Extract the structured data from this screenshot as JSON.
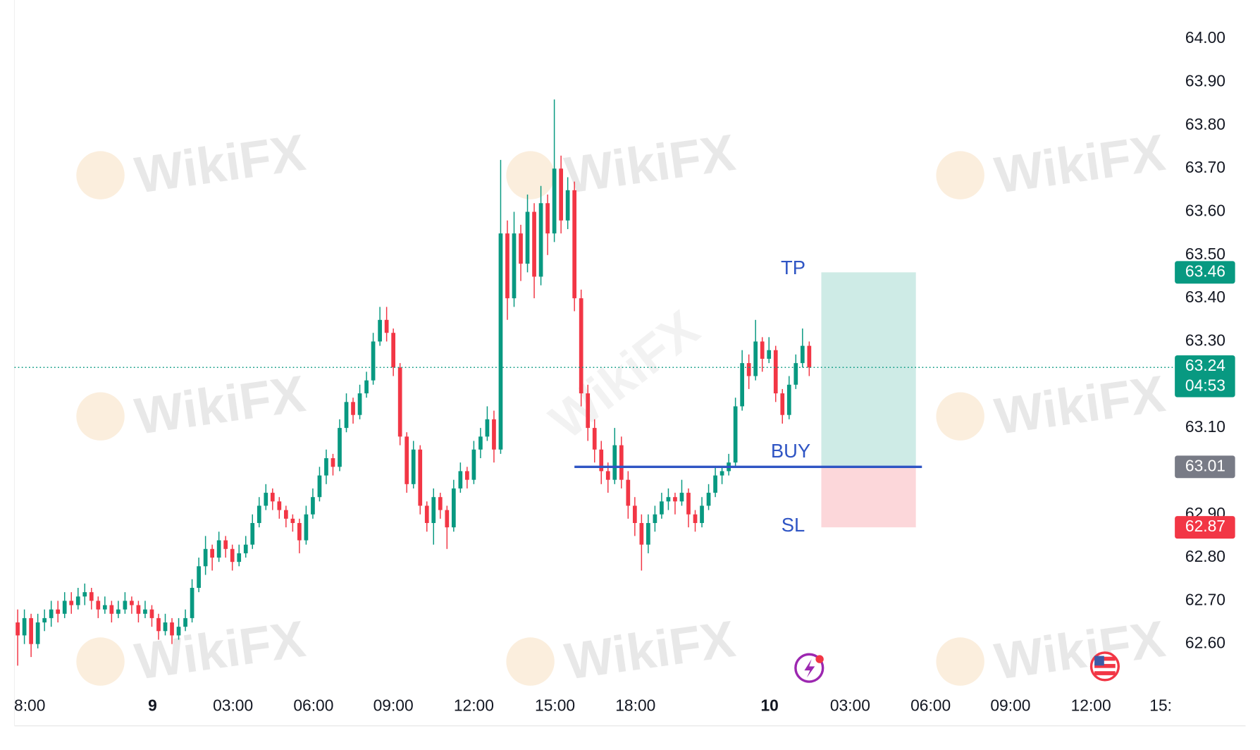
{
  "chart_data": {
    "type": "candlestick",
    "watermark": "WikiFX",
    "up_color": "#089981",
    "down_color": "#f23645",
    "xlim": [
      0,
      172.5
    ],
    "xticks": [
      {
        "value": 1.8,
        "label": "8:00"
      },
      {
        "value": 20.1,
        "label": "9"
      },
      {
        "value": 32.1,
        "label": "03:00"
      },
      {
        "value": 44.1,
        "label": "06:00"
      },
      {
        "value": 56.0,
        "label": "09:00"
      },
      {
        "value": 68.0,
        "label": "12:00"
      },
      {
        "value": 80.1,
        "label": "15:00"
      },
      {
        "value": 92.1,
        "label": "18:00"
      },
      {
        "value": 112.1,
        "label": "10"
      },
      {
        "value": 124.1,
        "label": "03:00"
      },
      {
        "value": 136.1,
        "label": "06:00"
      },
      {
        "value": 148.0,
        "label": "09:00"
      },
      {
        "value": 160.0,
        "label": "12:00"
      },
      {
        "value": 170.4,
        "label": "15:"
      }
    ],
    "ylim": [
      62.5,
      64.09
    ],
    "yticks": [
      {
        "value": 62.6,
        "label": "62.60"
      },
      {
        "value": 62.7,
        "label": "62.70"
      },
      {
        "value": 62.8,
        "label": "62.80"
      },
      {
        "value": 62.9,
        "label": "62.90"
      },
      {
        "value": 63.0,
        "label": "63.00"
      },
      {
        "value": 63.1,
        "label": "63.10"
      },
      {
        "value": 63.2,
        "label": "63.20"
      },
      {
        "value": 63.3,
        "label": "63.30"
      },
      {
        "value": 63.4,
        "label": "63.40"
      },
      {
        "value": 63.5,
        "label": "63.50"
      },
      {
        "value": 63.6,
        "label": "63.60"
      },
      {
        "value": 63.7,
        "label": "63.70"
      },
      {
        "value": 63.8,
        "label": "63.80"
      },
      {
        "value": 63.9,
        "label": "63.90"
      },
      {
        "value": 64.0,
        "label": "64.00"
      }
    ],
    "grid": true,
    "current_price": 63.24,
    "countdown": "04:53",
    "position": {
      "entry": 63.01,
      "take_profit": 63.46,
      "stop_loss": 62.87,
      "line_start": 83.0,
      "box_start": 119.8,
      "box_end": 133.9,
      "line_end": 134.8,
      "entry_label": "BUY",
      "tp_label": "TP",
      "sl_label": "SL",
      "line_color": "#2f55c4",
      "tp_color": "#089981",
      "sl_color": "#f23645",
      "entry_color": "#787b86"
    },
    "candles": [
      [
        62.65,
        62.68,
        62.55,
        62.62
      ],
      [
        62.62,
        62.68,
        62.6,
        62.66
      ],
      [
        62.66,
        62.67,
        62.57,
        62.6
      ],
      [
        62.6,
        62.67,
        62.59,
        62.65
      ],
      [
        62.65,
        62.68,
        62.63,
        62.66
      ],
      [
        62.66,
        62.7,
        62.64,
        62.68
      ],
      [
        62.68,
        62.7,
        62.65,
        62.67
      ],
      [
        62.67,
        62.72,
        62.66,
        62.7
      ],
      [
        62.7,
        62.72,
        62.67,
        62.69
      ],
      [
        62.69,
        62.73,
        62.68,
        62.71
      ],
      [
        62.71,
        62.74,
        62.69,
        62.72
      ],
      [
        62.72,
        62.73,
        62.68,
        62.7
      ],
      [
        62.7,
        62.71,
        62.66,
        62.68
      ],
      [
        62.68,
        62.71,
        62.67,
        62.69
      ],
      [
        62.69,
        62.7,
        62.65,
        62.67
      ],
      [
        62.67,
        62.7,
        62.66,
        62.68
      ],
      [
        62.68,
        62.72,
        62.67,
        62.7
      ],
      [
        62.7,
        62.71,
        62.67,
        62.69
      ],
      [
        62.69,
        62.7,
        62.65,
        62.67
      ],
      [
        62.67,
        62.7,
        62.66,
        62.68
      ],
      [
        62.68,
        62.69,
        62.64,
        62.66
      ],
      [
        62.66,
        62.67,
        62.61,
        62.63
      ],
      [
        62.63,
        62.67,
        62.62,
        62.65
      ],
      [
        62.65,
        62.66,
        62.6,
        62.62
      ],
      [
        62.62,
        62.66,
        62.61,
        62.64
      ],
      [
        62.64,
        62.68,
        62.63,
        62.66
      ],
      [
        62.66,
        62.75,
        62.65,
        62.73
      ],
      [
        62.73,
        62.8,
        62.72,
        62.78
      ],
      [
        62.78,
        62.85,
        62.76,
        62.82
      ],
      [
        62.82,
        62.83,
        62.77,
        62.8
      ],
      [
        62.8,
        62.86,
        62.79,
        62.84
      ],
      [
        62.84,
        62.85,
        62.8,
        62.82
      ],
      [
        62.82,
        62.83,
        62.77,
        62.79
      ],
      [
        62.79,
        62.83,
        62.78,
        62.81
      ],
      [
        62.81,
        62.85,
        62.8,
        62.83
      ],
      [
        62.83,
        62.9,
        62.82,
        62.88
      ],
      [
        62.88,
        62.94,
        62.87,
        62.92
      ],
      [
        62.92,
        62.97,
        62.91,
        62.95
      ],
      [
        62.95,
        62.96,
        62.91,
        62.93
      ],
      [
        62.93,
        62.94,
        62.89,
        62.91
      ],
      [
        62.91,
        62.92,
        62.87,
        62.89
      ],
      [
        62.89,
        62.9,
        62.86,
        62.88
      ],
      [
        62.88,
        62.89,
        62.81,
        62.84
      ],
      [
        62.84,
        62.92,
        62.83,
        62.9
      ],
      [
        62.9,
        62.96,
        62.89,
        62.94
      ],
      [
        62.94,
        63.01,
        62.93,
        62.99
      ],
      [
        62.99,
        63.05,
        62.97,
        63.03
      ],
      [
        63.03,
        63.04,
        62.99,
        63.01
      ],
      [
        63.01,
        63.12,
        63.0,
        63.1
      ],
      [
        63.1,
        63.18,
        63.09,
        63.16
      ],
      [
        63.16,
        63.17,
        63.11,
        63.13
      ],
      [
        63.13,
        63.2,
        63.12,
        63.18
      ],
      [
        63.18,
        63.23,
        63.17,
        63.21
      ],
      [
        63.21,
        63.32,
        63.2,
        63.3
      ],
      [
        63.3,
        63.38,
        63.29,
        63.35
      ],
      [
        63.35,
        63.38,
        63.3,
        63.32
      ],
      [
        63.32,
        63.33,
        63.22,
        63.24
      ],
      [
        63.24,
        63.25,
        63.06,
        63.08
      ],
      [
        63.08,
        63.09,
        62.95,
        62.97
      ],
      [
        62.97,
        63.07,
        62.96,
        63.05
      ],
      [
        63.05,
        63.06,
        62.9,
        62.92
      ],
      [
        62.92,
        62.93,
        62.86,
        62.88
      ],
      [
        62.88,
        62.96,
        62.83,
        62.94
      ],
      [
        62.94,
        62.95,
        62.89,
        62.91
      ],
      [
        62.91,
        62.92,
        62.82,
        62.87
      ],
      [
        62.87,
        62.98,
        62.86,
        62.96
      ],
      [
        62.96,
        63.02,
        62.95,
        63.0
      ],
      [
        63.0,
        63.01,
        62.96,
        62.98
      ],
      [
        62.98,
        63.07,
        62.97,
        63.05
      ],
      [
        63.05,
        63.1,
        63.03,
        63.08
      ],
      [
        63.08,
        63.15,
        63.07,
        63.12
      ],
      [
        63.12,
        63.14,
        63.02,
        63.05
      ],
      [
        63.05,
        63.72,
        63.04,
        63.55
      ],
      [
        63.55,
        63.58,
        63.35,
        63.4
      ],
      [
        63.4,
        63.6,
        63.38,
        63.55
      ],
      [
        63.55,
        63.57,
        63.44,
        63.48
      ],
      [
        63.48,
        63.64,
        63.46,
        63.6
      ],
      [
        63.6,
        63.62,
        63.4,
        63.45
      ],
      [
        63.45,
        63.66,
        63.43,
        63.62
      ],
      [
        63.62,
        63.64,
        63.5,
        63.55
      ],
      [
        63.55,
        63.86,
        63.53,
        63.7
      ],
      [
        63.7,
        63.73,
        63.55,
        63.58
      ],
      [
        63.58,
        63.68,
        63.56,
        63.65
      ],
      [
        63.65,
        63.67,
        63.37,
        63.4
      ],
      [
        63.4,
        63.42,
        63.15,
        63.18
      ],
      [
        63.18,
        63.2,
        63.07,
        63.1
      ],
      [
        63.1,
        63.12,
        63.02,
        63.05
      ],
      [
        63.05,
        63.07,
        62.97,
        63.0
      ],
      [
        63.0,
        63.02,
        62.95,
        62.98
      ],
      [
        62.98,
        63.1,
        62.97,
        63.06
      ],
      [
        63.06,
        63.08,
        62.96,
        62.98
      ],
      [
        62.98,
        63.0,
        62.89,
        62.92
      ],
      [
        62.92,
        62.94,
        62.85,
        62.88
      ],
      [
        62.88,
        62.9,
        62.77,
        62.83
      ],
      [
        62.83,
        62.9,
        62.81,
        62.88
      ],
      [
        62.88,
        62.92,
        62.86,
        62.9
      ],
      [
        62.9,
        62.95,
        62.89,
        62.93
      ],
      [
        62.93,
        62.96,
        62.91,
        62.94
      ],
      [
        62.94,
        62.95,
        62.9,
        62.93
      ],
      [
        62.93,
        62.98,
        62.92,
        62.95
      ],
      [
        62.95,
        62.96,
        62.87,
        62.9
      ],
      [
        62.9,
        62.91,
        62.86,
        62.88
      ],
      [
        62.88,
        62.94,
        62.87,
        62.92
      ],
      [
        62.92,
        62.97,
        62.91,
        62.95
      ],
      [
        62.95,
        63.01,
        62.94,
        62.99
      ],
      [
        62.99,
        63.01,
        62.97,
        63.0
      ],
      [
        63.0,
        63.04,
        62.99,
        63.02
      ],
      [
        63.02,
        63.17,
        63.01,
        63.15
      ],
      [
        63.15,
        63.28,
        63.14,
        63.25
      ],
      [
        63.25,
        63.27,
        63.19,
        63.22
      ],
      [
        63.22,
        63.35,
        63.21,
        63.3
      ],
      [
        63.3,
        63.31,
        63.23,
        63.26
      ],
      [
        63.26,
        63.31,
        63.25,
        63.28
      ],
      [
        63.28,
        63.29,
        63.16,
        63.18
      ],
      [
        63.18,
        63.19,
        63.11,
        63.13
      ],
      [
        63.13,
        63.22,
        63.12,
        63.2
      ],
      [
        63.2,
        63.27,
        63.19,
        63.25
      ],
      [
        63.25,
        63.33,
        63.24,
        63.29
      ],
      [
        63.29,
        63.3,
        63.22,
        63.24
      ]
    ]
  }
}
